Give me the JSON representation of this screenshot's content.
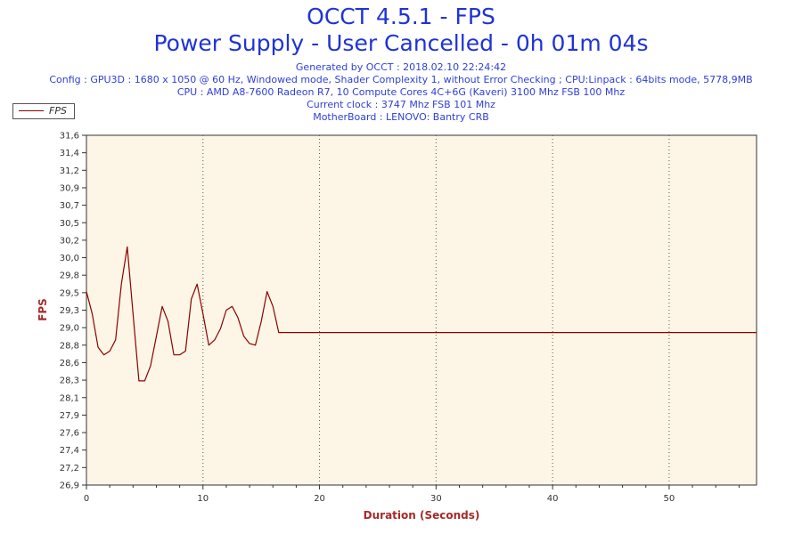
{
  "header": {
    "title": "OCCT 4.5.1 - FPS",
    "subtitle": "Power Supply - User Cancelled - 0h 01m 04s",
    "info_lines": [
      "Generated by OCCT : 2018.02.10 22:24:42",
      "Config : GPU3D : 1680 x 1050 @ 60 Hz, Windowed mode, Shader Complexity 1, without Error Checking ; CPU:Linpack : 64bits mode, 5778,9MB",
      "CPU : AMD A8-7600 Radeon R7, 10 Compute Cores 4C+6G (Kaveri) 3100 Mhz FSB 100 Mhz",
      "Current clock : 3747 Mhz FSB 101 Mhz",
      "MotherBoard : LENOVO: Bantry CRB"
    ]
  },
  "legend": {
    "label": "FPS"
  },
  "chart_data": {
    "type": "line",
    "xlabel": "Duration (Seconds)",
    "ylabel": "FPS",
    "xlim": [
      0,
      57.5
    ],
    "ylim": [
      26.9,
      31.6
    ],
    "grid": "vertical dotted",
    "legend_position": "top-left",
    "x_ticks": [
      0,
      10,
      20,
      30,
      40,
      50
    ],
    "y_ticks": [
      "31,6",
      "31,4",
      "31,2",
      "30,9",
      "30,7",
      "30,5",
      "30,2",
      "30,0",
      "29,8",
      "29,5",
      "29,3",
      "29,0",
      "28,8",
      "28,6",
      "28,3",
      "28,1",
      "27,9",
      "27,6",
      "27,4",
      "27,2",
      "26,9"
    ],
    "series": [
      {
        "name": "FPS",
        "color": "#8b0000",
        "x": [
          0,
          0.5,
          1,
          1.5,
          2,
          2.5,
          3,
          3.5,
          4,
          4.5,
          5,
          5.5,
          6,
          6.5,
          7,
          7.5,
          8,
          8.5,
          9,
          9.5,
          10,
          10.5,
          11,
          11.5,
          12,
          12.5,
          13,
          13.5,
          14,
          14.5,
          15,
          15.5,
          16,
          16.5,
          17,
          17.5,
          18,
          20,
          30,
          40,
          50,
          57.5
        ],
        "y": [
          29.5,
          29.2,
          28.75,
          28.65,
          28.7,
          28.85,
          29.6,
          30.1,
          29.2,
          28.3,
          28.3,
          28.5,
          28.9,
          29.3,
          29.1,
          28.65,
          28.65,
          28.7,
          29.4,
          29.6,
          29.2,
          28.78,
          28.85,
          29.0,
          29.25,
          29.3,
          29.15,
          28.9,
          28.8,
          28.78,
          29.1,
          29.5,
          29.3,
          28.95,
          28.95,
          28.95,
          28.95,
          28.95,
          28.95,
          28.95,
          28.95,
          28.95
        ]
      }
    ]
  }
}
